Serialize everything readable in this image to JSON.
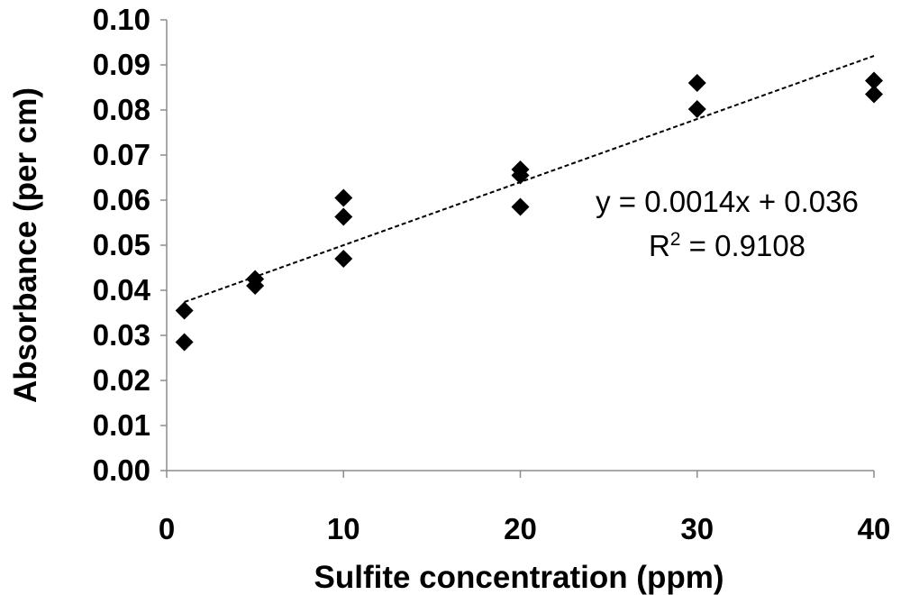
{
  "chart_data": {
    "type": "scatter",
    "title": "",
    "xlabel": "Sulfite concentration (ppm)",
    "ylabel": "Absorbance (per cm)",
    "xlim": [
      0,
      40
    ],
    "ylim": [
      0,
      0.1
    ],
    "x_ticks": [
      "0",
      "10",
      "20",
      "30",
      "40"
    ],
    "y_ticks": [
      "0.00",
      "0.01",
      "0.02",
      "0.03",
      "0.04",
      "0.05",
      "0.06",
      "0.07",
      "0.08",
      "0.09",
      "0.10"
    ],
    "grid": false,
    "series": [
      {
        "name": "Absorbance",
        "marker": "diamond",
        "color": "#000000",
        "points": [
          {
            "x": 1,
            "y": 0.0355
          },
          {
            "x": 1,
            "y": 0.0285
          },
          {
            "x": 5,
            "y": 0.0425
          },
          {
            "x": 5,
            "y": 0.041
          },
          {
            "x": 10,
            "y": 0.0605
          },
          {
            "x": 10,
            "y": 0.0563
          },
          {
            "x": 10,
            "y": 0.047
          },
          {
            "x": 20,
            "y": 0.0668
          },
          {
            "x": 20,
            "y": 0.0655
          },
          {
            "x": 20,
            "y": 0.0585
          },
          {
            "x": 30,
            "y": 0.086
          },
          {
            "x": 30,
            "y": 0.0802
          },
          {
            "x": 40,
            "y": 0.0865
          },
          {
            "x": 40,
            "y": 0.0835
          }
        ]
      }
    ],
    "trendline": {
      "type": "linear",
      "slope": 0.0014,
      "intercept": 0.036,
      "x_range": [
        1,
        40
      ],
      "style": "dashed",
      "color": "#000000"
    },
    "annotations": {
      "equation": "y = 0.0014x + 0.036",
      "r2_prefix": "R",
      "r2_exponent": "2",
      "r2_value": " = 0.9108"
    }
  }
}
